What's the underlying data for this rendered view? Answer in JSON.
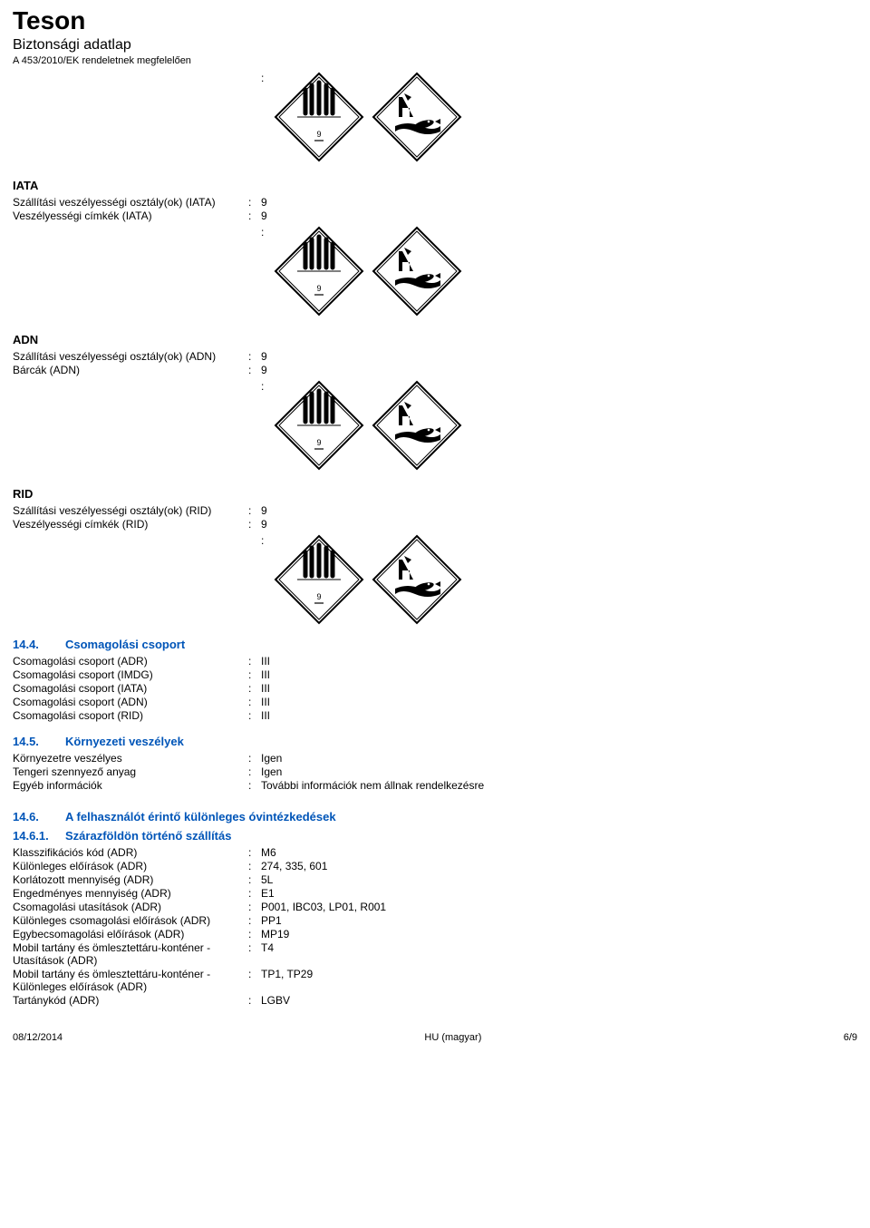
{
  "header": {
    "title": "Teson",
    "subtitle": "Biztonsági adatlap",
    "regulation": "A 453/2010/EK rendeletnek megfelelően"
  },
  "pictograms": {
    "class9_label": "9"
  },
  "iata": {
    "heading": "IATA",
    "class_label": "Szállítási veszélyességi osztály(ok) (IATA)",
    "class_value": "9",
    "labels_label": "Veszélyességi címkék (IATA)",
    "labels_value": "9"
  },
  "adn": {
    "heading": "ADN",
    "class_label": "Szállítási veszélyességi osztály(ok) (ADN)",
    "class_value": "9",
    "placards_label": "Bárcák (ADN)",
    "placards_value": "9"
  },
  "rid": {
    "heading": "RID",
    "class_label": "Szállítási veszélyességi osztály(ok) (RID)",
    "class_value": "9",
    "labels_label": "Veszélyességi címkék (RID)",
    "labels_value": "9"
  },
  "s144": {
    "num": "14.4.",
    "title": "Csomagolási csoport",
    "rows": [
      {
        "label": "Csomagolási csoport (ADR)",
        "value": "III"
      },
      {
        "label": "Csomagolási csoport (IMDG)",
        "value": "III"
      },
      {
        "label": "Csomagolási csoport (IATA)",
        "value": "III"
      },
      {
        "label": "Csomagolási csoport (ADN)",
        "value": "III"
      },
      {
        "label": "Csomagolási csoport (RID)",
        "value": "III"
      }
    ]
  },
  "s145": {
    "num": "14.5.",
    "title": "Környezeti veszélyek",
    "rows": [
      {
        "label": "Környezetre veszélyes",
        "value": "Igen"
      },
      {
        "label": "Tengeri szennyező anyag",
        "value": "Igen"
      },
      {
        "label": "Egyéb információk",
        "value": "További információk nem állnak rendelkezésre"
      }
    ]
  },
  "s146": {
    "num": "14.6.",
    "title": "A felhasználót érintő különleges óvintézkedések"
  },
  "s1461": {
    "num": "14.6.1.",
    "title": "Szárazföldön történő szállítás",
    "rows": [
      {
        "label": "Klasszifikációs kód (ADR)",
        "value": "M6"
      },
      {
        "label": "Különleges előírások (ADR)",
        "value": "274, 335, 601"
      },
      {
        "label": "Korlátozott mennyiség (ADR)",
        "value": "5L"
      },
      {
        "label": "Engedményes mennyiség (ADR)",
        "value": "E1"
      },
      {
        "label": "Csomagolási utasítások (ADR)",
        "value": "P001, IBC03, LP01, R001"
      },
      {
        "label": "Különleges csomagolási előírások (ADR)",
        "value": "PP1"
      },
      {
        "label": "Egybecsomagolási előírások (ADR)",
        "value": "MP19"
      },
      {
        "label": "Mobil tartány és ömlesztettáru-konténer - Utasítások (ADR)",
        "value": "T4"
      },
      {
        "label": "Mobil tartány és ömlesztettáru-konténer - Különleges előírások (ADR)",
        "value": "TP1, TP29"
      },
      {
        "label": "Tartánykód (ADR)",
        "value": "LGBV"
      }
    ]
  },
  "footer": {
    "date": "08/12/2014",
    "lang": "HU (magyar)",
    "page": "6/9"
  }
}
